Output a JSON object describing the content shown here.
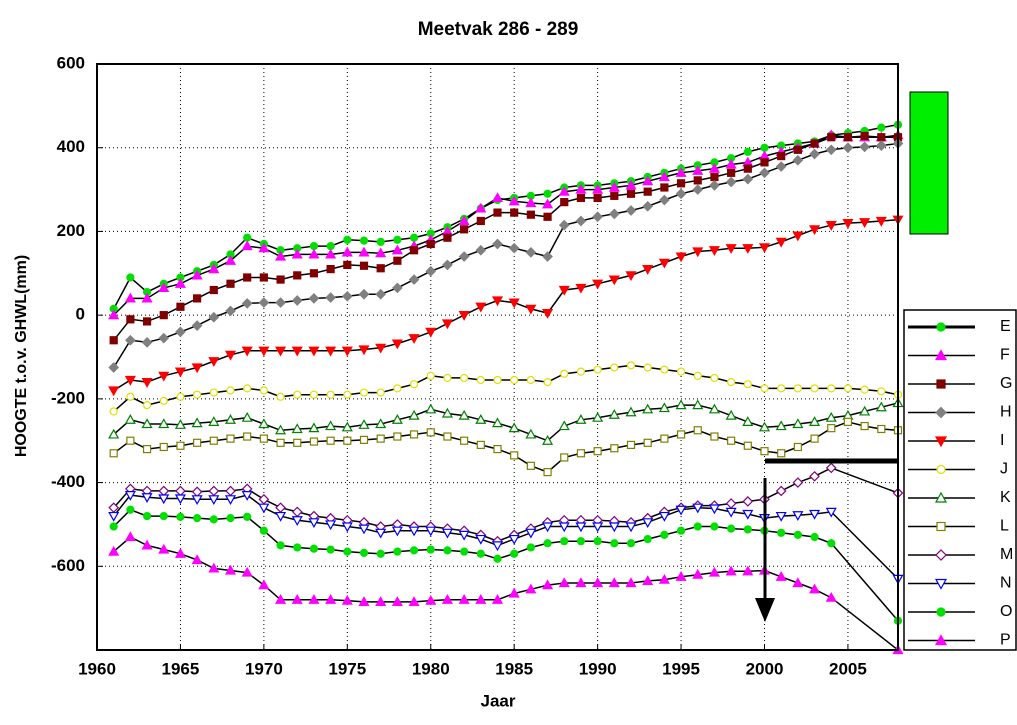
{
  "chart_data": {
    "type": "line",
    "title": "Meetvak 286 - 289",
    "x_label": "Jaar",
    "y_label": "HOOGTE t.o.v. GHWL(mm)",
    "xlim": [
      1960,
      2008
    ],
    "ylim": [
      -800,
      600
    ],
    "xticks": [
      1960,
      1965,
      1970,
      1975,
      1980,
      1985,
      1990,
      1995,
      2000,
      2005
    ],
    "yticks": [
      -600,
      -400,
      -200,
      0,
      200,
      400,
      600
    ],
    "grid": true,
    "line_color": "#000000",
    "legend": "right",
    "x": [
      1961,
      1962,
      1963,
      1964,
      1965,
      1966,
      1967,
      1968,
      1969,
      1970,
      1971,
      1972,
      1973,
      1974,
      1975,
      1976,
      1977,
      1978,
      1979,
      1980,
      1981,
      1982,
      1983,
      1984,
      1985,
      1986,
      1987,
      1988,
      1989,
      1990,
      1991,
      1992,
      1993,
      1994,
      1995,
      1996,
      1997,
      1998,
      1999,
      2000,
      2001,
      2002,
      2003,
      2004,
      2005,
      2006,
      2007,
      2008
    ],
    "series": [
      {
        "name": "E",
        "color": "#00e000",
        "marker": "circle",
        "filled": true,
        "values": [
          15,
          90,
          55,
          75,
          90,
          105,
          120,
          145,
          185,
          170,
          155,
          160,
          165,
          165,
          180,
          178,
          175,
          180,
          185,
          195,
          210,
          230,
          255,
          275,
          280,
          285,
          290,
          305,
          310,
          310,
          315,
          320,
          330,
          340,
          350,
          358,
          365,
          375,
          390,
          400,
          405,
          410,
          415,
          430,
          435,
          440,
          448,
          455
        ]
      },
      {
        "name": "F",
        "color": "#ff00ff",
        "marker": "triangle-up",
        "filled": true,
        "values": [
          0,
          40,
          40,
          65,
          75,
          95,
          110,
          130,
          165,
          160,
          140,
          145,
          145,
          145,
          150,
          150,
          148,
          155,
          165,
          180,
          200,
          225,
          255,
          280,
          272,
          268,
          265,
          295,
          300,
          300,
          305,
          310,
          320,
          330,
          340,
          345,
          350,
          360,
          365,
          380,
          390,
          400,
          410,
          430,
          425,
          425,
          425,
          430
        ]
      },
      {
        "name": "G",
        "color": "#800000",
        "marker": "square",
        "filled": true,
        "values": [
          -60,
          -10,
          -15,
          0,
          20,
          40,
          60,
          75,
          90,
          90,
          85,
          95,
          100,
          110,
          120,
          118,
          112,
          130,
          155,
          170,
          185,
          205,
          225,
          245,
          245,
          240,
          235,
          270,
          280,
          280,
          285,
          290,
          295,
          305,
          315,
          322,
          330,
          340,
          350,
          365,
          380,
          395,
          410,
          425,
          425,
          428,
          425,
          425
        ]
      },
      {
        "name": "H",
        "color": "#808080",
        "marker": "diamond",
        "filled": true,
        "values": [
          -125,
          -60,
          -65,
          -55,
          -40,
          -25,
          -5,
          10,
          28,
          30,
          30,
          35,
          40,
          42,
          45,
          50,
          50,
          65,
          85,
          105,
          120,
          140,
          155,
          170,
          160,
          150,
          140,
          215,
          225,
          235,
          242,
          250,
          260,
          275,
          290,
          300,
          310,
          318,
          325,
          340,
          355,
          370,
          385,
          395,
          400,
          402,
          405,
          410
        ]
      },
      {
        "name": "I",
        "color": "#ff0000",
        "marker": "triangle-down",
        "filled": true,
        "values": [
          -180,
          -155,
          -160,
          -145,
          -135,
          -125,
          -110,
          -95,
          -85,
          -85,
          -85,
          -85,
          -85,
          -85,
          -85,
          -82,
          -78,
          -68,
          -55,
          -40,
          -20,
          0,
          20,
          35,
          30,
          15,
          5,
          60,
          65,
          75,
          85,
          95,
          110,
          125,
          140,
          152,
          155,
          160,
          160,
          162,
          175,
          190,
          205,
          215,
          220,
          222,
          225,
          228
        ]
      },
      {
        "name": "J",
        "color": "#e0e000",
        "marker": "circle",
        "filled": false,
        "values": [
          -230,
          -195,
          -215,
          -205,
          -195,
          -190,
          -185,
          -180,
          -175,
          -180,
          -195,
          -190,
          -190,
          -190,
          -190,
          -185,
          -185,
          -175,
          -165,
          -145,
          -150,
          -150,
          -155,
          -155,
          -155,
          -155,
          -160,
          -140,
          -135,
          -130,
          -125,
          -120,
          -125,
          -130,
          -135,
          -145,
          -150,
          -160,
          -165,
          -175,
          -175,
          -175,
          -175,
          -175,
          -175,
          -178,
          -182,
          -190
        ]
      },
      {
        "name": "K",
        "color": "#008000",
        "marker": "triangle-up",
        "filled": false,
        "values": [
          -285,
          -250,
          -260,
          -260,
          -262,
          -258,
          -255,
          -250,
          -245,
          -260,
          -275,
          -272,
          -270,
          -265,
          -268,
          -262,
          -260,
          -250,
          -240,
          -225,
          -235,
          -240,
          -250,
          -258,
          -270,
          -285,
          -300,
          -265,
          -250,
          -245,
          -238,
          -232,
          -225,
          -222,
          -215,
          -215,
          -225,
          -240,
          -255,
          -268,
          -265,
          -260,
          -255,
          -245,
          -240,
          -230,
          -220,
          -210
        ]
      },
      {
        "name": "L",
        "color": "#808000",
        "marker": "square",
        "filled": false,
        "values": [
          -330,
          -300,
          -320,
          -315,
          -312,
          -305,
          -300,
          -295,
          -290,
          -295,
          -305,
          -305,
          -302,
          -300,
          -300,
          -298,
          -295,
          -290,
          -285,
          -280,
          -290,
          -300,
          -310,
          -320,
          -335,
          -360,
          -375,
          -340,
          -330,
          -325,
          -318,
          -310,
          -305,
          -295,
          -285,
          -275,
          -290,
          -300,
          -312,
          -325,
          -330,
          -315,
          -295,
          -270,
          -255,
          -265,
          -272,
          -275
        ]
      },
      {
        "name": "M",
        "color": "#800080",
        "marker": "diamond",
        "filled": false,
        "x": [
          1961,
          1962,
          1963,
          1964,
          1965,
          1966,
          1967,
          1968,
          1969,
          1970,
          1971,
          1972,
          1973,
          1974,
          1975,
          1976,
          1977,
          1978,
          1979,
          1980,
          1981,
          1982,
          1983,
          1984,
          1985,
          1986,
          1987,
          1988,
          1989,
          1990,
          1991,
          1992,
          1993,
          1994,
          1995,
          1996,
          1997,
          1998,
          1999,
          2000,
          2001,
          2002,
          2003,
          2004,
          2008
        ],
        "values": [
          -460,
          -415,
          -420,
          -420,
          -420,
          -422,
          -420,
          -420,
          -415,
          -440,
          -460,
          -470,
          -480,
          -485,
          -490,
          -495,
          -505,
          -500,
          -505,
          -505,
          -510,
          -515,
          -525,
          -540,
          -525,
          -510,
          -495,
          -490,
          -490,
          -490,
          -492,
          -495,
          -485,
          -470,
          -460,
          -455,
          -455,
          -450,
          -445,
          -440,
          -420,
          -400,
          -385,
          -365,
          -425
        ]
      },
      {
        "name": "N",
        "color": "#0000ff",
        "marker": "triangle-down",
        "filled": false,
        "x": [
          1961,
          1962,
          1963,
          1964,
          1965,
          1966,
          1967,
          1968,
          1969,
          1970,
          1971,
          1972,
          1973,
          1974,
          1975,
          1976,
          1977,
          1978,
          1979,
          1980,
          1981,
          1982,
          1983,
          1984,
          1985,
          1986,
          1987,
          1988,
          1989,
          1990,
          1991,
          1992,
          1993,
          1994,
          1995,
          1996,
          1997,
          1998,
          1999,
          2000,
          2001,
          2002,
          2003,
          2004,
          2008
        ],
        "values": [
          -480,
          -430,
          -435,
          -438,
          -438,
          -440,
          -440,
          -440,
          -430,
          -460,
          -480,
          -490,
          -495,
          -500,
          -505,
          -510,
          -520,
          -515,
          -515,
          -515,
          -520,
          -525,
          -535,
          -550,
          -535,
          -520,
          -505,
          -505,
          -505,
          -505,
          -505,
          -505,
          -495,
          -480,
          -465,
          -460,
          -462,
          -470,
          -475,
          -485,
          -480,
          -478,
          -475,
          -470,
          -630
        ]
      },
      {
        "name": "O",
        "color": "#00e000",
        "marker": "circle",
        "filled": true,
        "x": [
          1961,
          1962,
          1963,
          1964,
          1965,
          1966,
          1967,
          1968,
          1969,
          1970,
          1971,
          1972,
          1973,
          1974,
          1975,
          1976,
          1977,
          1978,
          1979,
          1980,
          1981,
          1982,
          1983,
          1984,
          1985,
          1986,
          1987,
          1988,
          1989,
          1990,
          1991,
          1992,
          1993,
          1994,
          1995,
          1996,
          1997,
          1998,
          1999,
          2000,
          2001,
          2002,
          2003,
          2004,
          2008
        ],
        "values": [
          -505,
          -465,
          -480,
          -480,
          -482,
          -485,
          -488,
          -485,
          -482,
          -515,
          -550,
          -555,
          -558,
          -560,
          -565,
          -568,
          -570,
          -565,
          -562,
          -560,
          -562,
          -565,
          -570,
          -582,
          -570,
          -555,
          -545,
          -540,
          -540,
          -540,
          -545,
          -545,
          -535,
          -525,
          -515,
          -505,
          -505,
          -510,
          -512,
          -515,
          -520,
          -525,
          -530,
          -545,
          -730
        ]
      },
      {
        "name": "P",
        "color": "#ff00ff",
        "marker": "triangle-up",
        "filled": true,
        "x": [
          1961,
          1962,
          1963,
          1964,
          1965,
          1966,
          1967,
          1968,
          1969,
          1970,
          1971,
          1972,
          1973,
          1974,
          1975,
          1976,
          1977,
          1978,
          1979,
          1980,
          1981,
          1982,
          1983,
          1984,
          1985,
          1986,
          1987,
          1988,
          1989,
          1990,
          1991,
          1992,
          1993,
          1994,
          1995,
          1996,
          1997,
          1998,
          1999,
          2000,
          2001,
          2002,
          2003,
          2004,
          2008
        ],
        "values": [
          -565,
          -530,
          -550,
          -560,
          -570,
          -585,
          -605,
          -610,
          -615,
          -645,
          -680,
          -680,
          -680,
          -680,
          -682,
          -685,
          -685,
          -685,
          -685,
          -682,
          -680,
          -680,
          -680,
          -680,
          -665,
          -655,
          -645,
          -640,
          -640,
          -640,
          -640,
          -640,
          -635,
          -632,
          -625,
          -620,
          -615,
          -612,
          -612,
          -610,
          -625,
          -640,
          -655,
          -675,
          -800
        ]
      }
    ]
  }
}
